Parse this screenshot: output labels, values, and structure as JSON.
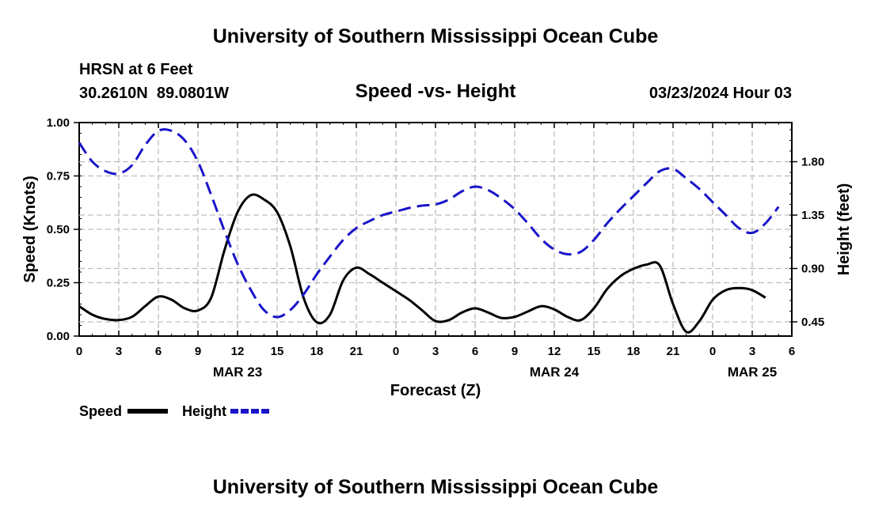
{
  "header": {
    "title": "University of Southern Mississippi Ocean Cube",
    "station": "HRSN at 6 Feet",
    "coords": "30.2610N  89.0801W",
    "datetime": "03/23/2024 Hour 03"
  },
  "footer": {
    "title": "University of Southern Mississippi Ocean Cube"
  },
  "chart_data": {
    "type": "line",
    "title": "Speed -vs- Height",
    "xlabel": "Forecast (Z)",
    "ylabel": "Speed (Knots)",
    "y2label": "Height (feet)",
    "xlim": [
      0,
      54
    ],
    "ylim": [
      0,
      1.0
    ],
    "y2lim": [
      0.33,
      2.13
    ],
    "x_ticks": [
      0,
      3,
      6,
      9,
      12,
      15,
      18,
      21,
      24,
      27,
      30,
      33,
      36,
      39,
      42,
      45,
      48,
      51,
      54
    ],
    "x_tick_labels": [
      "0",
      "3",
      "6",
      "9",
      "12",
      "15",
      "18",
      "21",
      "0",
      "3",
      "6",
      "9",
      "12",
      "15",
      "18",
      "21",
      "0",
      "3",
      "6"
    ],
    "date_labels": [
      {
        "x": 12,
        "label": "MAR 23"
      },
      {
        "x": 36,
        "label": "MAR 24"
      },
      {
        "x": 51,
        "label": "MAR 25"
      }
    ],
    "y_ticks": [
      0,
      0.25,
      0.5,
      0.75,
      1.0
    ],
    "y_tick_labels": [
      "0.00",
      "0.25",
      "0.50",
      "0.75",
      "1.00"
    ],
    "y2_ticks": [
      0.45,
      0.9,
      1.35,
      1.8
    ],
    "y2_tick_labels": [
      "0.45",
      "0.90",
      "1.35",
      "1.80"
    ],
    "grid": true,
    "legend": {
      "position": "bottom-left"
    },
    "series": [
      {
        "name": "Speed",
        "axis": "left",
        "color": "#000000",
        "style": "solid",
        "points": [
          [
            0,
            0.14
          ],
          [
            1,
            0.1
          ],
          [
            2,
            0.08
          ],
          [
            3,
            0.075
          ],
          [
            4,
            0.09
          ],
          [
            5,
            0.14
          ],
          [
            6,
            0.185
          ],
          [
            7,
            0.17
          ],
          [
            8,
            0.13
          ],
          [
            9,
            0.12
          ],
          [
            10,
            0.18
          ],
          [
            11,
            0.4
          ],
          [
            12,
            0.58
          ],
          [
            13,
            0.66
          ],
          [
            14,
            0.64
          ],
          [
            15,
            0.58
          ],
          [
            16,
            0.42
          ],
          [
            17,
            0.18
          ],
          [
            18,
            0.065
          ],
          [
            19,
            0.1
          ],
          [
            20,
            0.26
          ],
          [
            21,
            0.32
          ],
          [
            22,
            0.29
          ],
          [
            23,
            0.25
          ],
          [
            24,
            0.21
          ],
          [
            25,
            0.17
          ],
          [
            26,
            0.12
          ],
          [
            27,
            0.07
          ],
          [
            28,
            0.075
          ],
          [
            29,
            0.11
          ],
          [
            30,
            0.13
          ],
          [
            31,
            0.11
          ],
          [
            32,
            0.085
          ],
          [
            33,
            0.09
          ],
          [
            34,
            0.115
          ],
          [
            35,
            0.14
          ],
          [
            36,
            0.125
          ],
          [
            37,
            0.09
          ],
          [
            38,
            0.075
          ],
          [
            39,
            0.13
          ],
          [
            40,
            0.22
          ],
          [
            41,
            0.28
          ],
          [
            42,
            0.315
          ],
          [
            43,
            0.335
          ],
          [
            44,
            0.33
          ],
          [
            45,
            0.15
          ],
          [
            46,
            0.02
          ],
          [
            47,
            0.07
          ],
          [
            48,
            0.17
          ],
          [
            49,
            0.215
          ],
          [
            50,
            0.225
          ],
          [
            51,
            0.215
          ],
          [
            52,
            0.18
          ]
        ]
      },
      {
        "name": "Height",
        "axis": "right",
        "color": "#1a14c8",
        "style": "dashed",
        "points": [
          [
            0,
            1.96
          ],
          [
            1,
            1.8
          ],
          [
            2,
            1.72
          ],
          [
            3,
            1.7
          ],
          [
            4,
            1.77
          ],
          [
            5,
            1.94
          ],
          [
            6,
            2.06
          ],
          [
            7,
            2.06
          ],
          [
            8,
            1.98
          ],
          [
            9,
            1.8
          ],
          [
            10,
            1.52
          ],
          [
            11,
            1.22
          ],
          [
            12,
            0.94
          ],
          [
            13,
            0.72
          ],
          [
            14,
            0.55
          ],
          [
            15,
            0.49
          ],
          [
            16,
            0.55
          ],
          [
            17,
            0.68
          ],
          [
            18,
            0.85
          ],
          [
            19,
            1.0
          ],
          [
            20,
            1.14
          ],
          [
            21,
            1.24
          ],
          [
            22,
            1.3
          ],
          [
            23,
            1.35
          ],
          [
            24,
            1.38
          ],
          [
            25,
            1.41
          ],
          [
            26,
            1.43
          ],
          [
            27,
            1.44
          ],
          [
            28,
            1.48
          ],
          [
            29,
            1.55
          ],
          [
            30,
            1.59
          ],
          [
            31,
            1.56
          ],
          [
            32,
            1.49
          ],
          [
            33,
            1.4
          ],
          [
            34,
            1.28
          ],
          [
            35,
            1.15
          ],
          [
            36,
            1.06
          ],
          [
            37,
            1.02
          ],
          [
            38,
            1.04
          ],
          [
            39,
            1.14
          ],
          [
            40,
            1.28
          ],
          [
            41,
            1.4
          ],
          [
            42,
            1.51
          ],
          [
            43,
            1.62
          ],
          [
            44,
            1.72
          ],
          [
            45,
            1.74
          ],
          [
            46,
            1.66
          ],
          [
            47,
            1.57
          ],
          [
            48,
            1.46
          ],
          [
            49,
            1.35
          ],
          [
            50,
            1.24
          ],
          [
            51,
            1.2
          ],
          [
            52,
            1.28
          ],
          [
            53,
            1.42
          ]
        ]
      }
    ]
  }
}
